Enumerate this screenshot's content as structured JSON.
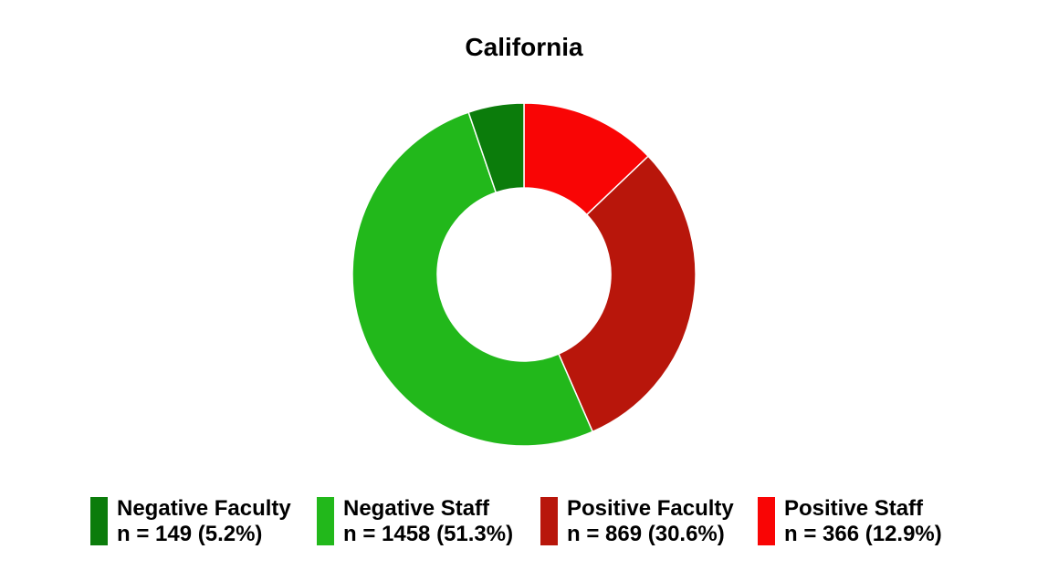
{
  "chart_data": {
    "type": "donut",
    "title": "California",
    "series": [
      {
        "name": "Negative Faculty",
        "value": 149,
        "percent": 5.2,
        "label": "n = 149 (5.2%)",
        "color": "#0b7c0b"
      },
      {
        "name": "Negative Staff",
        "value": 1458,
        "percent": 51.3,
        "label": "n = 1458 (51.3%)",
        "color": "#22b81b"
      },
      {
        "name": "Positive Faculty",
        "value": 869,
        "percent": 30.6,
        "label": "n = 869 (30.6%)",
        "color": "#b8160b"
      },
      {
        "name": "Positive Staff",
        "value": 366,
        "percent": 12.9,
        "label": "n = 366 (12.9%)",
        "color": "#f90505"
      }
    ],
    "legend_position": "bottom"
  }
}
